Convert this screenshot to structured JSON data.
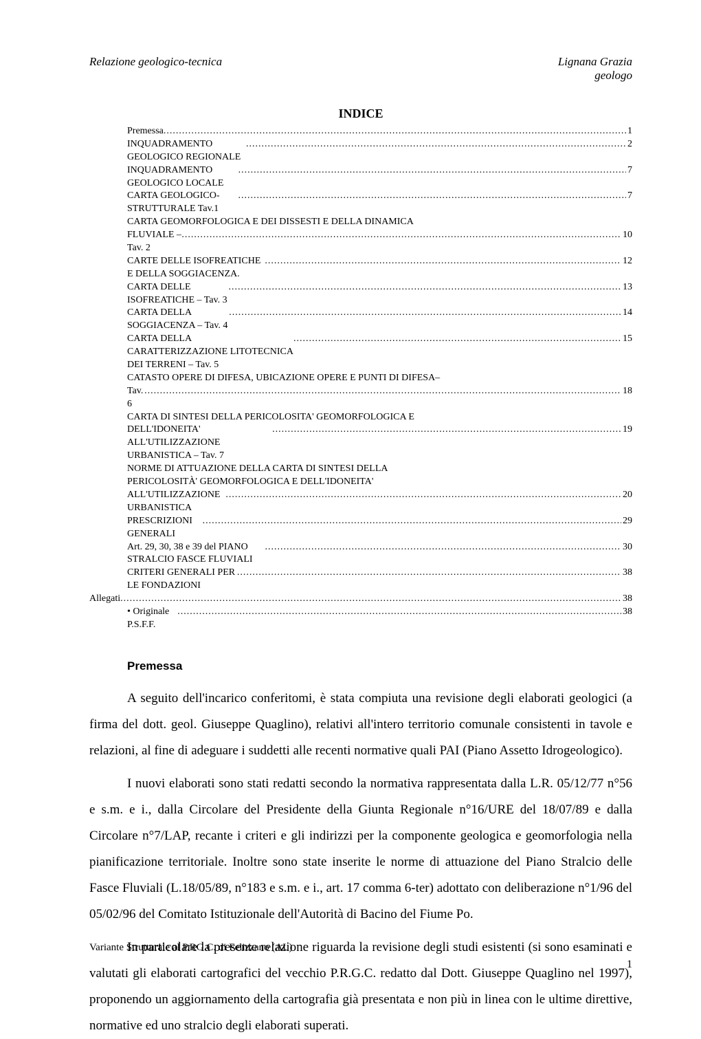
{
  "header": {
    "left": "Relazione geologico-tecnica",
    "right_line1": "Lignana Grazia",
    "right_line2": "geologo"
  },
  "indice_title": "INDICE",
  "toc": [
    {
      "label": "Premessa",
      "page": "1",
      "indent": 1,
      "dots": true
    },
    {
      "label": "INQUADRAMENTO GEOLOGICO REGIONALE",
      "page": "2",
      "indent": 1,
      "dots": true
    },
    {
      "label": "INQUADRAMENTO GEOLOGICO LOCALE",
      "page": "7",
      "indent": 1,
      "dots": true
    },
    {
      "label": "CARTA GEOLOGICO-STRUTTURALE Tav.1",
      "page": "7",
      "indent": 1,
      "dots": true
    },
    {
      "label": "CARTA GEOMORFOLOGICA E DEI DISSESTI E DELLA DINAMICA",
      "page": "",
      "indent": 1,
      "dots": false
    },
    {
      "label": "FLUVIALE – Tav. 2",
      "page": "10",
      "indent": 1,
      "dots": true
    },
    {
      "label": "CARTE DELLE ISOFREATICHE E DELLA SOGGIACENZA.",
      "page": "12",
      "indent": 1,
      "dots": true
    },
    {
      "label": "CARTA DELLE ISOFREATICHE – Tav. 3",
      "page": "13",
      "indent": 1,
      "dots": true
    },
    {
      "label": "CARTA DELLA SOGGIACENZA – Tav. 4",
      "page": "14",
      "indent": 1,
      "dots": true
    },
    {
      "label": "CARTA DELLA CARATTERIZZAZIONE LITOTECNICA DEI TERRENI – Tav. 5",
      "page": "15",
      "indent": 1,
      "dots": true
    },
    {
      "label": "CATASTO OPERE DI DIFESA, UBICAZIONE OPERE E PUNTI DI DIFESA–",
      "page": "",
      "indent": 1,
      "dots": false
    },
    {
      "label": "Tav. 6",
      "page": "18",
      "indent": 1,
      "dots": true
    },
    {
      "label": "CARTA DI SINTESI DELLA PERICOLOSITA' GEOMORFOLOGICA E",
      "page": "",
      "indent": 1,
      "dots": false
    },
    {
      "label": "DELL'IDONEITA' ALL'UTILIZZAZIONE URBANISTICA – Tav. 7",
      "page": "19",
      "indent": 1,
      "dots": true
    },
    {
      "label": "NORME DI ATTUAZIONE DELLA CARTA DI SINTESI DELLA",
      "page": "",
      "indent": 1,
      "dots": false
    },
    {
      "label": "PERICOLOSITÀ' GEOMORFOLOGICA E DELL'IDONEITA'",
      "page": "",
      "indent": 1,
      "dots": false
    },
    {
      "label": "ALL'UTILIZZAZIONE URBANISTICA",
      "page": "20",
      "indent": 1,
      "dots": true
    },
    {
      "label": "PRESCRIZIONI GENERALI",
      "page": "29",
      "indent": 1,
      "dots": true
    },
    {
      "label": "Art. 29, 30, 38 e 39 del  PIANO STRALCIO FASCE FLUVIALI",
      "page": "30",
      "indent": 1,
      "dots": true
    },
    {
      "label": "CRITERI GENERALI PER LE FONDAZIONI",
      "page": "38",
      "indent": 1,
      "dots": true
    },
    {
      "label": "Allegati",
      "page": "38",
      "indent": 0,
      "dots": true
    },
    {
      "label": "Originale P.S.F.F.",
      "page": "38",
      "indent": 1,
      "dots": true,
      "bullet": true
    }
  ],
  "section_heading": "Premessa",
  "paragraphs": [
    "A seguito dell'incarico conferitomi, è stata compiuta una revisione degli elaborati geologici (a firma del dott. geol. Giuseppe Quaglino), relativi all'intero territorio comunale consistenti in tavole e relazioni, al fine di adeguare i suddetti alle recenti normative quali  PAI (Piano Assetto Idrogeologico).",
    "I nuovi elaborati sono  stati redatti secondo la normativa rappresentata dalla L.R. 05/12/77 n°56 e s.m. e i., dalla Circolare del Presidente della Giunta Regionale n°16/URE del 18/07/89 e dalla Circolare n°7/LAP, recante i criteri e gli indirizzi per la componente geologica e geomorfologia nella pianificazione territoriale. Inoltre sono state inserite le norme di attuazione del Piano Stralcio delle Fasce Fluviali (L.18/05/89, n°183 e s.m. e i., art. 17 comma 6-ter) adottato con deliberazione n°1/96 del 05/02/96 del Comitato Istituzionale dell'Autorità di Bacino del Fiume Po.",
    "In particolare la presente relazione riguarda la revisione degli studi esistenti (si sono esaminati e valutati gli elaborati cartografici del vecchio P.R.G.C. redatto dal Dott. Giuseppe Quaglino nel 1997), proponendo un aggiornamento della cartografia già presentata e non più in linea con le ultime direttive, normative ed uno stralcio degli elaborati superati."
  ],
  "footer": "Variante Strutturale al  P.RG.C. di Felizzano (AL)",
  "page_number": "1",
  "colors": {
    "text": "#000000",
    "background": "#ffffff"
  },
  "fonts": {
    "body": "Times New Roman",
    "heading": "Arial"
  }
}
